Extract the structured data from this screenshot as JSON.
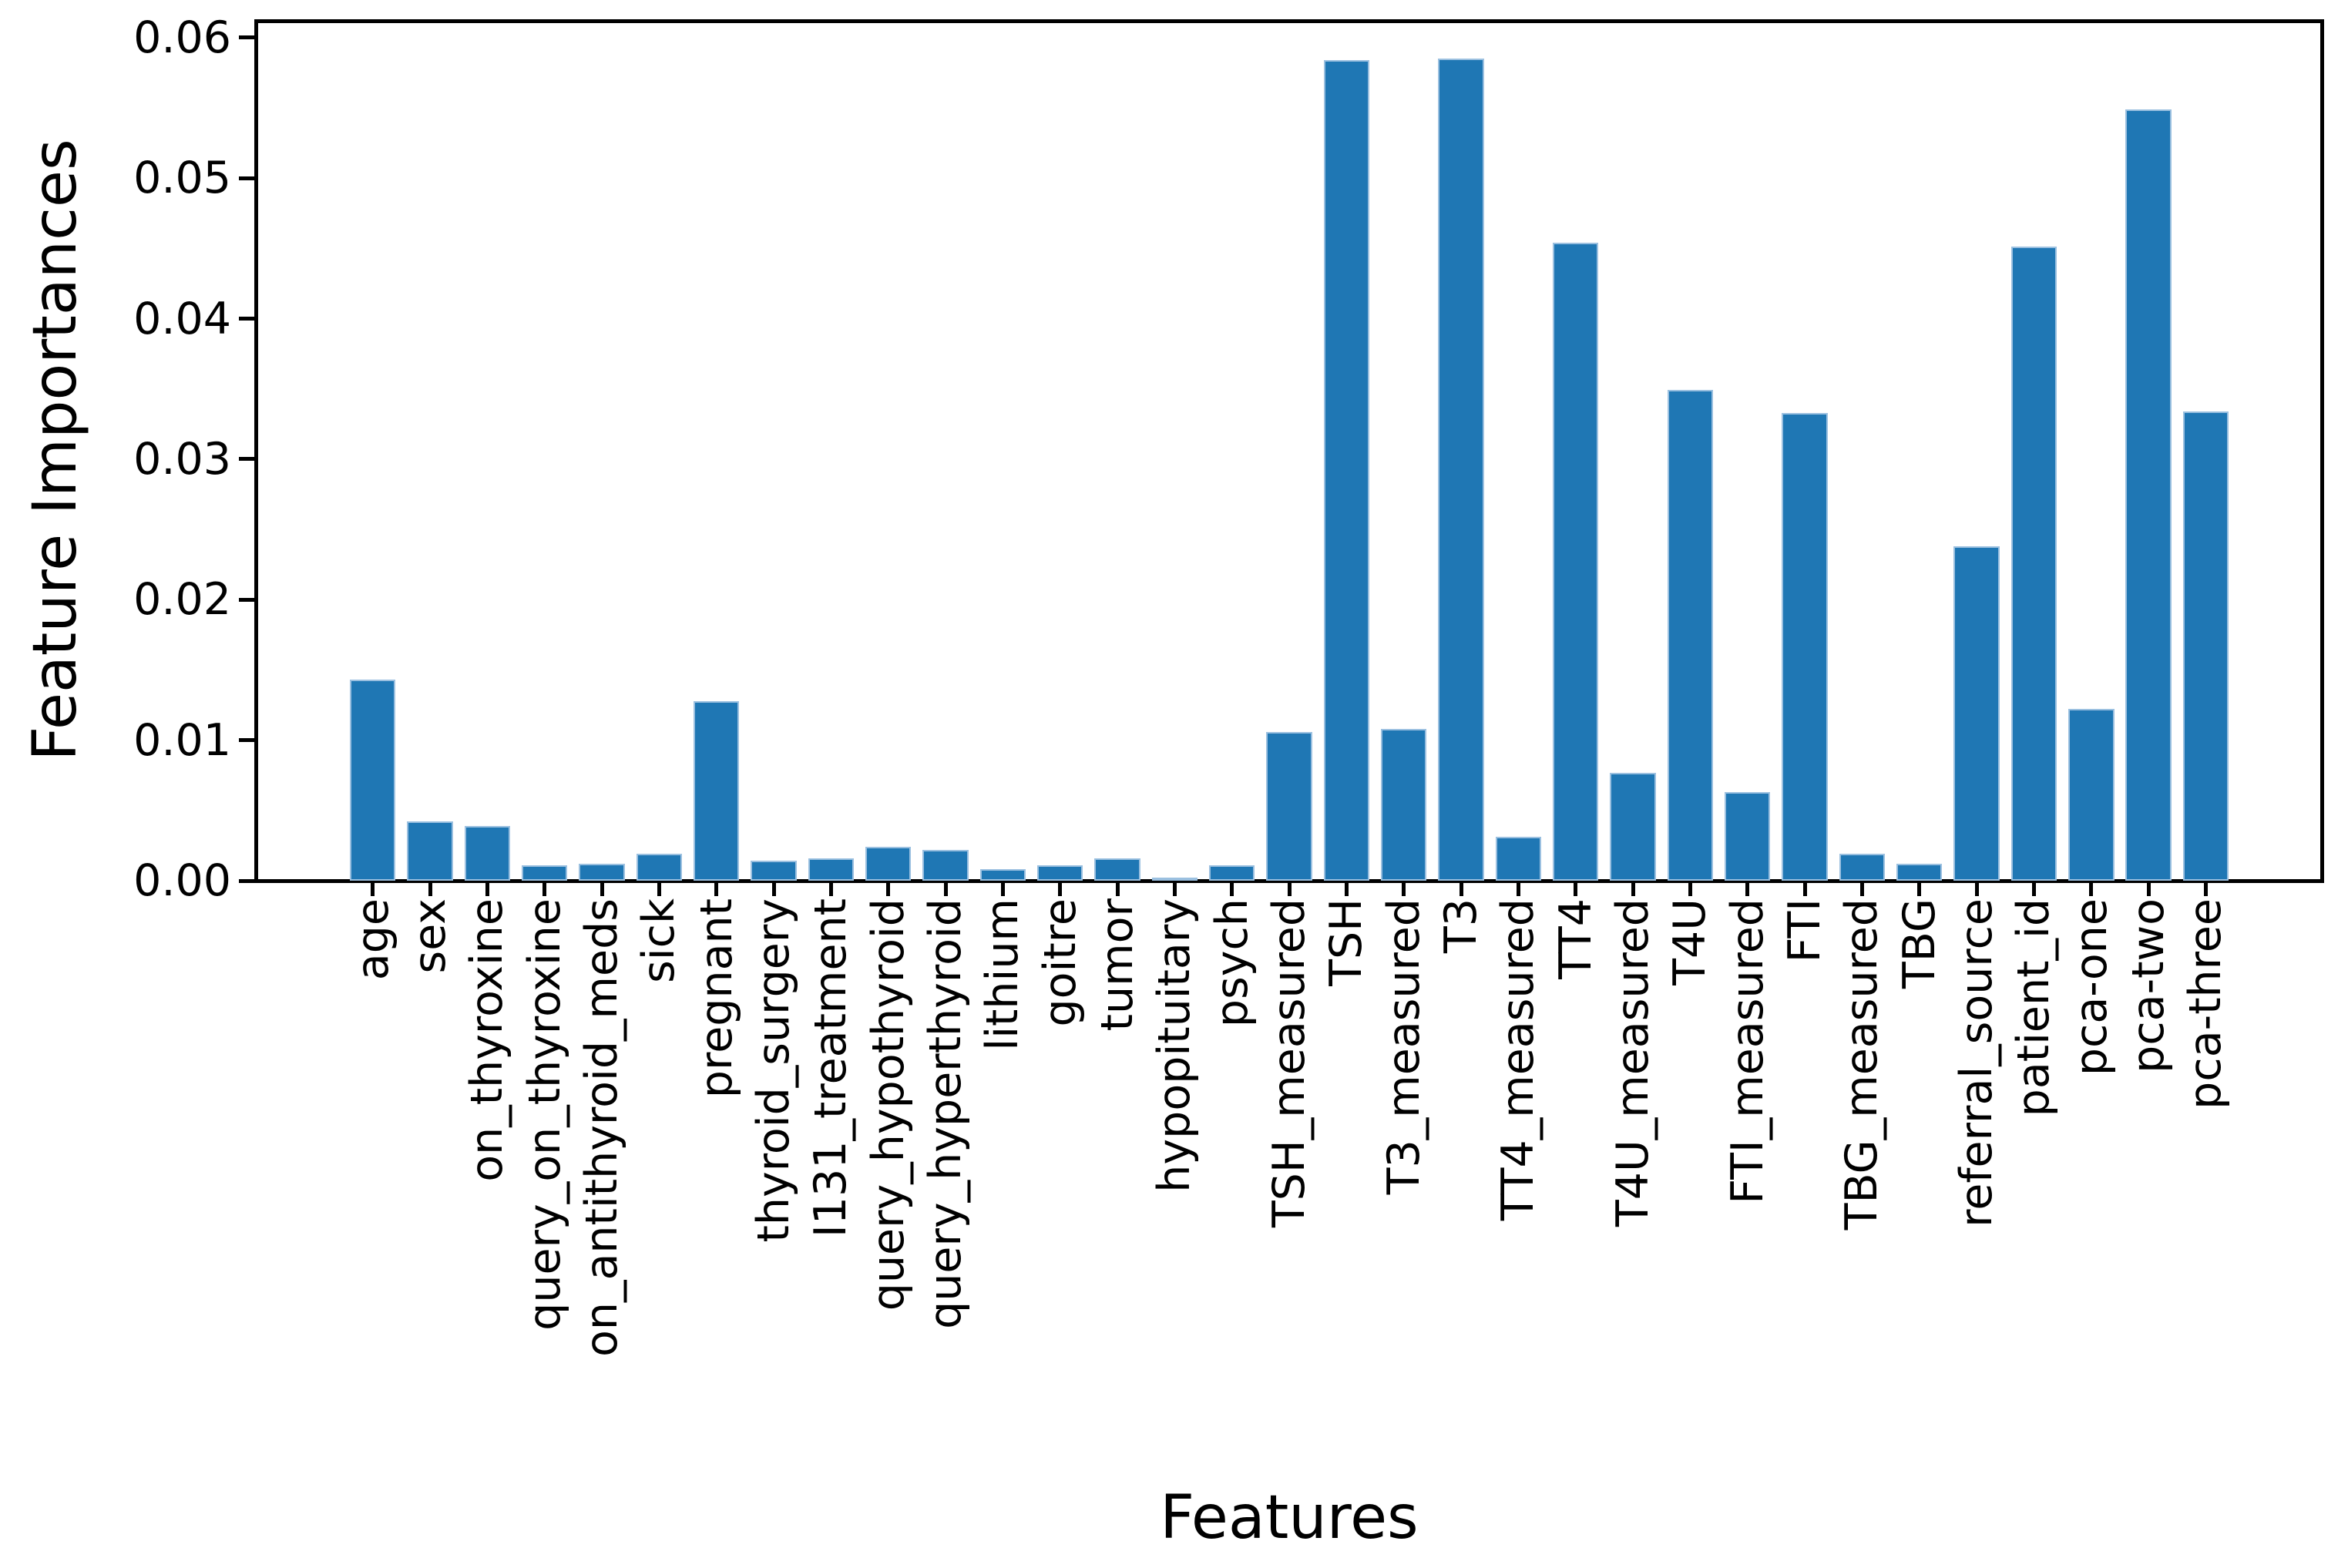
{
  "chart_data": {
    "type": "bar",
    "title": "",
    "xlabel": "Features",
    "ylabel": "Feature Importances",
    "categories": [
      "age",
      "sex",
      "on_thyroxine",
      "query_on_thyroxine",
      "on_antithyroid_meds",
      "sick",
      "pregnant",
      "thyroid_surgery",
      "I131_treatment",
      "query_hypothyroid",
      "query_hyperthyroid",
      "lithium",
      "goitre",
      "tumor",
      "hypopituitary",
      "psych",
      "TSH_measured",
      "TSH",
      "T3_measured",
      "T3",
      "TT4_measured",
      "TT4",
      "T4U_measured",
      "T4U",
      "FTI_measured",
      "FTI",
      "TBG_measured",
      "TBG",
      "referral_source",
      "patient_id",
      "pca-one",
      "pca-two",
      "pca-three"
    ],
    "values": [
      0.0143,
      0.0042,
      0.0039,
      0.0011,
      0.0012,
      0.0019,
      0.0128,
      0.0014,
      0.0016,
      0.0024,
      0.0022,
      0.0008,
      0.0011,
      0.0016,
      0.0002,
      0.0011,
      0.0106,
      0.0584,
      0.0108,
      0.0585,
      0.0031,
      0.0454,
      0.0077,
      0.0349,
      0.0063,
      0.0333,
      0.0019,
      0.0012,
      0.0238,
      0.0451,
      0.0122,
      0.0549,
      0.0334
    ],
    "ylim": [
      0,
      0.0613
    ],
    "xlim": [
      -2.04,
      34.04
    ],
    "yticks": [
      0.0,
      0.01,
      0.02,
      0.03,
      0.04,
      0.05,
      0.06
    ],
    "ytick_labels": [
      "0.00",
      "0.01",
      "0.02",
      "0.03",
      "0.04",
      "0.05",
      "0.06"
    ],
    "bar_color": "#1f77b4",
    "bar_edge_color": "#a8c8e4",
    "axis_color": "#000000",
    "grid": false,
    "legend_position": "none",
    "bar_width_fraction": 0.8
  }
}
